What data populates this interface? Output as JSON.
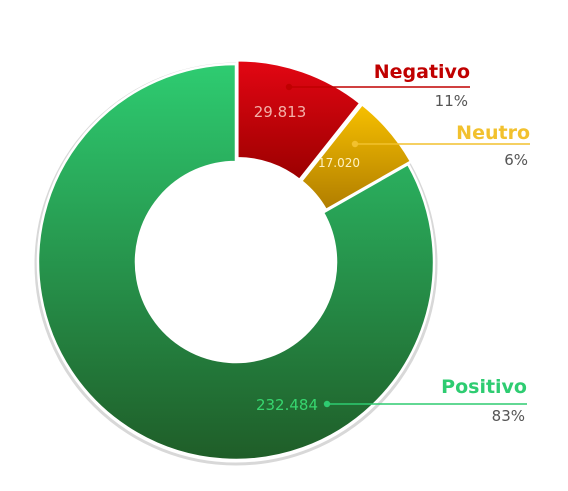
{
  "chart_data": {
    "type": "pie",
    "variant": "donut",
    "legend": "none",
    "slices": [
      {
        "name": "Negativo",
        "value": 29813,
        "value_label": "29.813",
        "percent_label": "11%",
        "color_top": "#e30613",
        "color_bottom": "#9b0000",
        "label_color": "#c00000",
        "value_text_color": "#f3b0a8"
      },
      {
        "name": "Neutro",
        "value": 17020,
        "value_label": "17.020",
        "percent_label": "6%",
        "color_top": "#f7c000",
        "color_bottom": "#b07d00",
        "label_color": "#f2c12e",
        "value_text_color": "#fff2c0"
      },
      {
        "name": "Positivo",
        "value": 232484,
        "value_label": "232.484",
        "percent_label": "83%",
        "color_top": "#2ecc71",
        "color_bottom": "#1f5d28",
        "label_color": "#2ecc71",
        "value_text_color": "#37d66f"
      }
    ]
  },
  "colors": {
    "background": "#ffffff",
    "percent_text": "#555555",
    "slice_border": "#ffffff"
  }
}
